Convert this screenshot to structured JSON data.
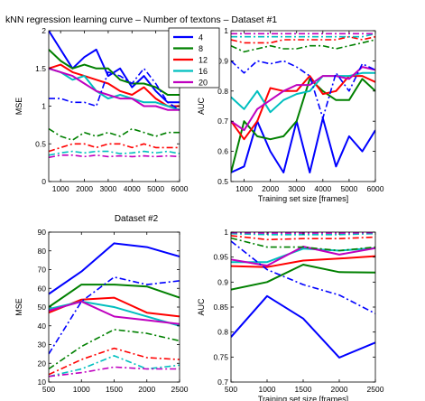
{
  "title": "kNN regression learning curve – Number of textons – Dataset #1",
  "subtitle": "Dataset #2",
  "legend": {
    "location": "top-right of top-left panel",
    "entries": [
      {
        "label": "4",
        "color": "#0000ff"
      },
      {
        "label": "8",
        "color": "#008000"
      },
      {
        "label": "12",
        "color": "#ff0000"
      },
      {
        "label": "16",
        "color": "#00bfbf"
      },
      {
        "label": "20",
        "color": "#bf00bf"
      }
    ]
  },
  "chart_data": [
    {
      "type": "line",
      "id": "d1-mse",
      "title": "",
      "xlabel": "",
      "ylabel": "MSE",
      "xlim": [
        500,
        6000
      ],
      "ylim": [
        0,
        2
      ],
      "xticks": [
        1000,
        2000,
        3000,
        4000,
        5000,
        6000
      ],
      "yticks": [
        0,
        0.5,
        1,
        1.5,
        2
      ],
      "x": [
        500,
        1000,
        1500,
        2000,
        2500,
        3000,
        3500,
        4000,
        4500,
        5000,
        5500,
        6000
      ],
      "series": [
        {
          "name": "4",
          "color": "#0000ff",
          "style": "solid",
          "values": [
            2.0,
            1.75,
            1.5,
            1.65,
            1.75,
            1.4,
            1.5,
            1.25,
            1.4,
            1.2,
            1.05,
            1.05
          ]
        },
        {
          "name": "8",
          "color": "#008000",
          "style": "solid",
          "values": [
            1.75,
            1.6,
            1.5,
            1.55,
            1.5,
            1.5,
            1.35,
            1.3,
            1.3,
            1.25,
            1.15,
            1.15
          ]
        },
        {
          "name": "12",
          "color": "#ff0000",
          "style": "solid",
          "values": [
            1.5,
            1.55,
            1.45,
            1.4,
            1.35,
            1.3,
            1.2,
            1.15,
            1.25,
            1.1,
            1.0,
            1.0
          ]
        },
        {
          "name": "16",
          "color": "#00bfbf",
          "style": "solid",
          "values": [
            1.5,
            1.45,
            1.35,
            1.4,
            1.2,
            1.1,
            1.15,
            1.1,
            1.05,
            1.05,
            1.0,
            0.95
          ]
        },
        {
          "name": "20",
          "color": "#bf00bf",
          "style": "solid",
          "values": [
            1.5,
            1.45,
            1.4,
            1.3,
            1.2,
            1.15,
            1.1,
            1.1,
            1.0,
            1.0,
            0.95,
            0.95
          ]
        },
        {
          "name": "",
          "color": "#0000ff",
          "style": "dashdot",
          "values": [
            1.1,
            1.1,
            1.05,
            1.05,
            1.0,
            1.45,
            1.4,
            1.3,
            1.5,
            1.3,
            1.05,
            0.95
          ]
        },
        {
          "name": "",
          "color": "#008000",
          "style": "dashdot",
          "values": [
            0.7,
            0.6,
            0.55,
            0.65,
            0.6,
            0.65,
            0.6,
            0.7,
            0.65,
            0.6,
            0.65,
            0.65
          ]
        },
        {
          "name": "",
          "color": "#ff0000",
          "style": "dashdot",
          "values": [
            0.4,
            0.45,
            0.5,
            0.5,
            0.45,
            0.5,
            0.5,
            0.45,
            0.5,
            0.45,
            0.45,
            0.45
          ]
        },
        {
          "name": "",
          "color": "#00bfbf",
          "style": "dashdot",
          "values": [
            0.35,
            0.38,
            0.4,
            0.38,
            0.4,
            0.4,
            0.37,
            0.38,
            0.4,
            0.38,
            0.4,
            0.37
          ]
        },
        {
          "name": "",
          "color": "#bf00bf",
          "style": "dashdot",
          "values": [
            0.32,
            0.35,
            0.35,
            0.33,
            0.35,
            0.33,
            0.34,
            0.33,
            0.34,
            0.33,
            0.34,
            0.33
          ]
        }
      ]
    },
    {
      "type": "line",
      "id": "d1-auc",
      "title": "",
      "xlabel": "Training set size [frames]",
      "ylabel": "AUC",
      "xlim": [
        500,
        6000
      ],
      "ylim": [
        0.5,
        1
      ],
      "xticks": [
        1000,
        2000,
        3000,
        4000,
        5000,
        6000
      ],
      "yticks": [
        0.5,
        0.6,
        0.7,
        0.8,
        0.9,
        1
      ],
      "x": [
        500,
        1000,
        1500,
        2000,
        2500,
        3000,
        3500,
        4000,
        4500,
        5000,
        5500,
        6000
      ],
      "series": [
        {
          "name": "4",
          "color": "#0000ff",
          "style": "solid",
          "values": [
            0.53,
            0.55,
            0.7,
            0.6,
            0.53,
            0.7,
            0.53,
            0.71,
            0.55,
            0.65,
            0.6,
            0.67
          ]
        },
        {
          "name": "8",
          "color": "#008000",
          "style": "solid",
          "values": [
            0.53,
            0.7,
            0.65,
            0.64,
            0.65,
            0.7,
            0.84,
            0.8,
            0.77,
            0.77,
            0.84,
            0.8
          ]
        },
        {
          "name": "12",
          "color": "#ff0000",
          "style": "solid",
          "values": [
            0.7,
            0.64,
            0.7,
            0.81,
            0.8,
            0.8,
            0.85,
            0.79,
            0.8,
            0.85,
            0.85,
            0.83
          ]
        },
        {
          "name": "16",
          "color": "#00bfbf",
          "style": "solid",
          "values": [
            0.78,
            0.74,
            0.8,
            0.73,
            0.77,
            0.79,
            0.8,
            0.85,
            0.85,
            0.85,
            0.86,
            0.86
          ]
        },
        {
          "name": "20",
          "color": "#bf00bf",
          "style": "solid",
          "values": [
            0.7,
            0.67,
            0.74,
            0.77,
            0.8,
            0.82,
            0.82,
            0.85,
            0.85,
            0.84,
            0.88,
            0.87
          ]
        },
        {
          "name": "",
          "color": "#0000ff",
          "style": "dashdot",
          "values": [
            0.9,
            0.86,
            0.9,
            0.89,
            0.9,
            0.88,
            0.85,
            0.71,
            0.86,
            0.8,
            0.89,
            0.87
          ]
        },
        {
          "name": "",
          "color": "#008000",
          "style": "dashdot",
          "values": [
            0.95,
            0.93,
            0.94,
            0.95,
            0.94,
            0.94,
            0.95,
            0.95,
            0.94,
            0.95,
            0.96,
            0.97
          ]
        },
        {
          "name": "",
          "color": "#ff0000",
          "style": "dashdot",
          "values": [
            0.97,
            0.96,
            0.96,
            0.96,
            0.97,
            0.97,
            0.97,
            0.97,
            0.97,
            0.98,
            0.97,
            0.98
          ]
        },
        {
          "name": "",
          "color": "#00bfbf",
          "style": "dashdot",
          "values": [
            0.98,
            0.98,
            0.98,
            0.98,
            0.98,
            0.98,
            0.98,
            0.98,
            0.98,
            0.98,
            0.98,
            0.99
          ]
        },
        {
          "name": "",
          "color": "#bf00bf",
          "style": "dashdot",
          "values": [
            0.99,
            0.99,
            0.99,
            0.99,
            0.99,
            0.99,
            0.99,
            0.99,
            0.99,
            0.99,
            0.99,
            0.99
          ]
        }
      ]
    },
    {
      "type": "line",
      "id": "d2-mse",
      "title": "Dataset #2",
      "xlabel": "",
      "ylabel": "MSE",
      "xlim": [
        500,
        2500
      ],
      "ylim": [
        10,
        90
      ],
      "xticks": [
        500,
        1000,
        1500,
        2000,
        2500
      ],
      "yticks": [
        10,
        20,
        30,
        40,
        50,
        60,
        70,
        80,
        90
      ],
      "x": [
        500,
        1000,
        1500,
        2000,
        2500
      ],
      "series": [
        {
          "name": "4",
          "color": "#0000ff",
          "style": "solid",
          "values": [
            57,
            69,
            84,
            82,
            77
          ]
        },
        {
          "name": "8",
          "color": "#008000",
          "style": "solid",
          "values": [
            50,
            62,
            62,
            61,
            55
          ]
        },
        {
          "name": "12",
          "color": "#ff0000",
          "style": "solid",
          "values": [
            47,
            54,
            55,
            47,
            45
          ]
        },
        {
          "name": "16",
          "color": "#00bfbf",
          "style": "solid",
          "values": [
            49,
            53,
            50,
            45,
            40
          ]
        },
        {
          "name": "20",
          "color": "#bf00bf",
          "style": "solid",
          "values": [
            48,
            53,
            45,
            43,
            41
          ]
        },
        {
          "name": "",
          "color": "#0000ff",
          "style": "dashdot",
          "values": [
            25,
            53,
            66,
            62,
            64
          ]
        },
        {
          "name": "",
          "color": "#008000",
          "style": "dashdot",
          "values": [
            17,
            29,
            38,
            36,
            32
          ]
        },
        {
          "name": "",
          "color": "#ff0000",
          "style": "dashdot",
          "values": [
            14,
            22,
            28,
            23,
            22
          ]
        },
        {
          "name": "",
          "color": "#00bfbf",
          "style": "dashdot",
          "values": [
            13,
            17,
            24,
            17,
            19
          ]
        },
        {
          "name": "",
          "color": "#bf00bf",
          "style": "dashdot",
          "values": [
            13,
            15,
            18,
            17,
            17
          ]
        }
      ]
    },
    {
      "type": "line",
      "id": "d2-auc",
      "title": "",
      "xlabel": "Training set size [frames]",
      "ylabel": "AUC",
      "xlim": [
        500,
        2500
      ],
      "ylim": [
        0.7,
        1
      ],
      "xticks": [
        500,
        1000,
        1500,
        2000,
        2500
      ],
      "yticks": [
        0.7,
        0.75,
        0.8,
        0.85,
        0.9,
        0.95,
        1
      ],
      "x": [
        500,
        1000,
        1500,
        2000,
        2500
      ],
      "series": [
        {
          "name": "4",
          "color": "#0000ff",
          "style": "solid",
          "values": [
            0.79,
            0.872,
            0.827,
            0.749,
            0.779
          ]
        },
        {
          "name": "8",
          "color": "#008000",
          "style": "solid",
          "values": [
            0.885,
            0.9,
            0.935,
            0.92,
            0.919
          ]
        },
        {
          "name": "12",
          "color": "#ff0000",
          "style": "solid",
          "values": [
            0.932,
            0.93,
            0.943,
            0.947,
            0.952
          ]
        },
        {
          "name": "16",
          "color": "#00bfbf",
          "style": "solid",
          "values": [
            0.94,
            0.94,
            0.967,
            0.963,
            0.968
          ]
        },
        {
          "name": "20",
          "color": "#bf00bf",
          "style": "solid",
          "values": [
            0.945,
            0.933,
            0.971,
            0.955,
            0.968
          ]
        },
        {
          "name": "",
          "color": "#0000ff",
          "style": "dashdot",
          "values": [
            0.982,
            0.925,
            0.895,
            0.874,
            0.837
          ]
        },
        {
          "name": "",
          "color": "#008000",
          "style": "dashdot",
          "values": [
            0.988,
            0.97,
            0.97,
            0.963,
            0.97
          ]
        },
        {
          "name": "",
          "color": "#ff0000",
          "style": "dashdot",
          "values": [
            0.993,
            0.985,
            0.987,
            0.987,
            0.99
          ]
        },
        {
          "name": "",
          "color": "#00bfbf",
          "style": "dashdot",
          "values": [
            0.997,
            0.995,
            0.995,
            0.995,
            0.997
          ]
        },
        {
          "name": "",
          "color": "#bf00bf",
          "style": "dashdot",
          "values": [
            0.999,
            0.998,
            0.998,
            0.998,
            0.999
          ]
        }
      ]
    }
  ]
}
